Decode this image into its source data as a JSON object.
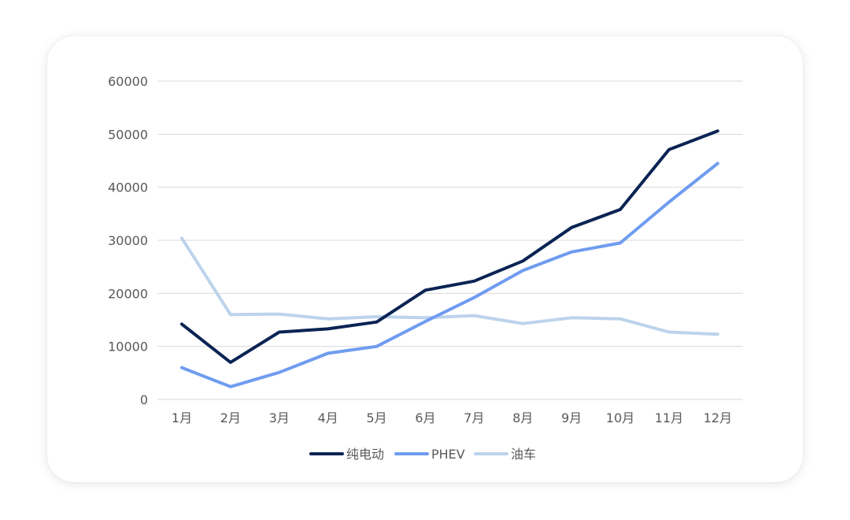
{
  "chart_data": {
    "type": "line",
    "categories": [
      "1月",
      "2月",
      "3月",
      "4月",
      "5月",
      "6月",
      "7月",
      "8月",
      "9月",
      "10月",
      "11月",
      "12月"
    ],
    "series": [
      {
        "name": "纯电动",
        "color": "#0b2454",
        "values": [
          14200,
          7000,
          12700,
          13300,
          14600,
          20600,
          22300,
          26100,
          32400,
          35800,
          47100,
          50600
        ]
      },
      {
        "name": "PHEV",
        "color": "#6f9cf0",
        "values": [
          6000,
          2400,
          5100,
          8700,
          10000,
          14700,
          19200,
          24300,
          27800,
          29500,
          37200,
          44500
        ]
      },
      {
        "name": "油车",
        "color": "#bcd3ec",
        "values": [
          30400,
          16000,
          16100,
          15200,
          15600,
          15400,
          15800,
          14300,
          15400,
          15200,
          12700,
          12300
        ]
      }
    ],
    "ylim": [
      0,
      60000
    ],
    "yticks": [
      0,
      10000,
      20000,
      30000,
      40000,
      50000,
      60000
    ],
    "grid": true,
    "legend": "bottom"
  }
}
